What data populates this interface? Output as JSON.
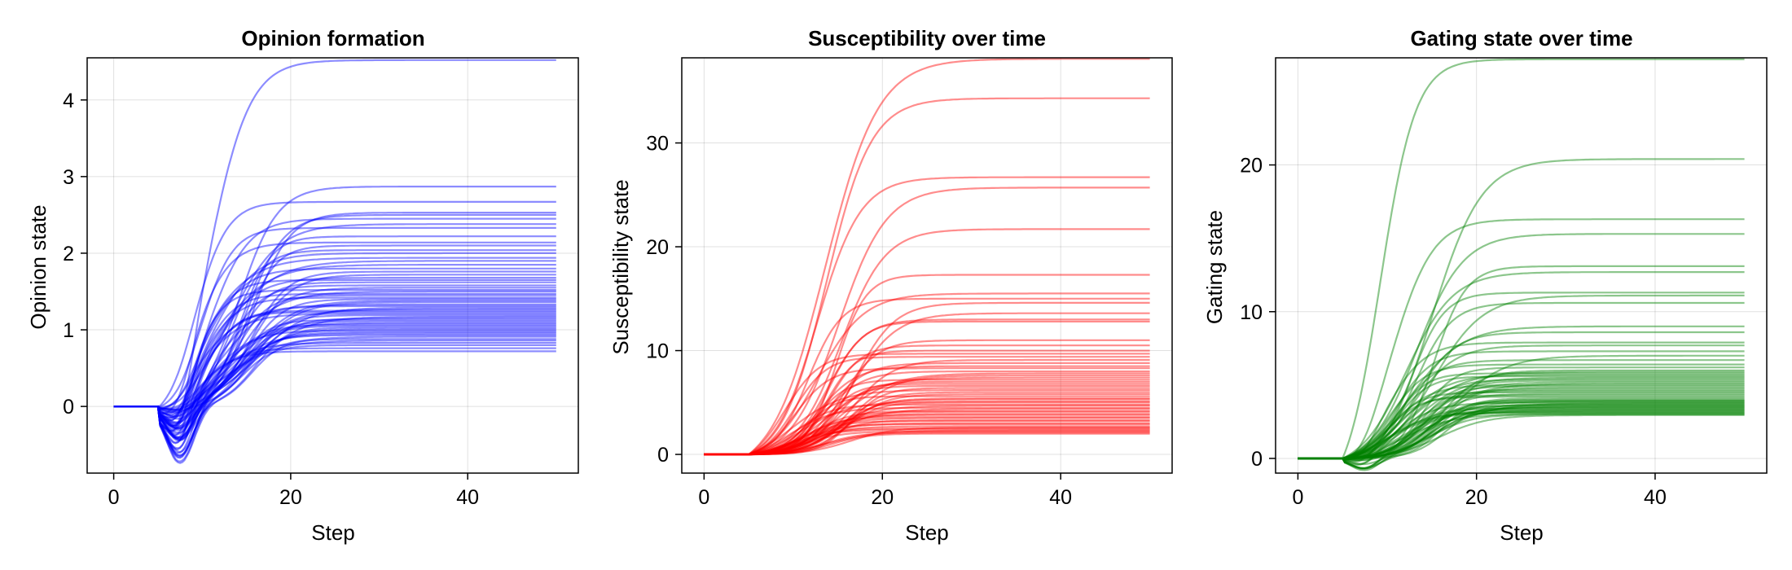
{
  "chart_data": [
    {
      "type": "line",
      "title": "Opinion formation",
      "xlabel": "Step",
      "ylabel": "Opinion state",
      "xlim": [
        -3,
        52.5
      ],
      "ylim": [
        -0.87,
        4.55
      ],
      "xticks": [
        0,
        20,
        40
      ],
      "yticks": [
        0,
        1,
        2,
        3,
        4
      ],
      "grid": true,
      "legend": "none",
      "color": "#0000ff",
      "line_count": 60,
      "trajectory": {
        "start_step": 0,
        "hold_until_step": 5,
        "end_step": 50,
        "initial_value": 0,
        "dip_min": -0.8,
        "dip_step": 7
      },
      "series_final_values": [
        4.52,
        2.87,
        2.67,
        2.53,
        2.5,
        2.45,
        2.38,
        2.33,
        2.22,
        2.14,
        2.1,
        2.04,
        2.0,
        1.94,
        1.9,
        1.85,
        1.8,
        1.76,
        1.72,
        1.68,
        1.65,
        1.62,
        1.58,
        1.55,
        1.52,
        1.5,
        1.47,
        1.45,
        1.42,
        1.4,
        1.38,
        1.36,
        1.33,
        1.31,
        1.29,
        1.27,
        1.25,
        1.23,
        1.21,
        1.19,
        1.17,
        1.15,
        1.13,
        1.11,
        1.09,
        1.07,
        1.05,
        1.03,
        1.01,
        0.99,
        0.97,
        0.95,
        0.93,
        0.91,
        0.88,
        0.86,
        0.83,
        0.8,
        0.76,
        0.72
      ]
    },
    {
      "type": "line",
      "title": "Susceptibility over time",
      "xlabel": "Step",
      "ylabel": "Susceptibility state",
      "xlim": [
        -2.5,
        52.5
      ],
      "ylim": [
        -1.8,
        38.2
      ],
      "xticks": [
        0,
        20,
        40
      ],
      "yticks": [
        0,
        10,
        20,
        30
      ],
      "grid": true,
      "legend": "none",
      "color": "#ff0000",
      "line_count": 60,
      "trajectory": {
        "start_step": 0,
        "hold_until_step": 5,
        "end_step": 50,
        "initial_value": 0
      },
      "series_final_values": [
        38.1,
        34.3,
        26.7,
        25.7,
        21.7,
        17.3,
        15.5,
        15.0,
        14.6,
        13.6,
        13.0,
        12.8,
        11.0,
        10.5,
        10.0,
        9.7,
        9.4,
        9.1,
        8.8,
        8.5,
        8.3,
        8.0,
        7.8,
        7.6,
        7.4,
        7.2,
        7.0,
        6.8,
        6.6,
        6.4,
        6.2,
        6.0,
        5.8,
        5.6,
        5.4,
        5.3,
        5.1,
        5.0,
        4.8,
        4.7,
        4.5,
        4.4,
        4.2,
        4.1,
        3.9,
        3.8,
        3.6,
        3.5,
        3.3,
        3.2,
        3.0,
        2.9,
        2.7,
        2.6,
        2.5,
        2.4,
        2.3,
        2.2,
        2.1,
        2.0
      ]
    },
    {
      "type": "line",
      "title": "Gating state over time",
      "xlabel": "Step",
      "ylabel": "Gating state",
      "xlim": [
        -2.5,
        52.5
      ],
      "ylim": [
        -1.0,
        27.3
      ],
      "xticks": [
        0,
        20,
        40
      ],
      "yticks": [
        0,
        10,
        20
      ],
      "grid": true,
      "legend": "none",
      "color": "#008000",
      "line_count": 60,
      "trajectory": {
        "start_step": 0,
        "hold_until_step": 5,
        "end_step": 50,
        "initial_value": 0
      },
      "series_final_values": [
        27.2,
        20.4,
        16.3,
        15.3,
        13.1,
        12.7,
        11.3,
        11.1,
        10.6,
        9.0,
        8.6,
        7.9,
        7.7,
        7.3,
        7.0,
        6.7,
        6.4,
        6.2,
        6.0,
        5.9,
        5.8,
        5.7,
        5.6,
        5.5,
        5.4,
        5.3,
        5.2,
        5.1,
        5.0,
        4.9,
        4.8,
        4.7,
        4.6,
        4.5,
        4.4,
        4.3,
        4.2,
        4.1,
        4.0,
        3.95,
        3.9,
        3.85,
        3.8,
        3.75,
        3.7,
        3.65,
        3.6,
        3.55,
        3.5,
        3.45,
        3.4,
        3.35,
        3.3,
        3.25,
        3.2,
        3.15,
        3.1,
        3.05,
        3.0,
        2.95
      ]
    }
  ]
}
